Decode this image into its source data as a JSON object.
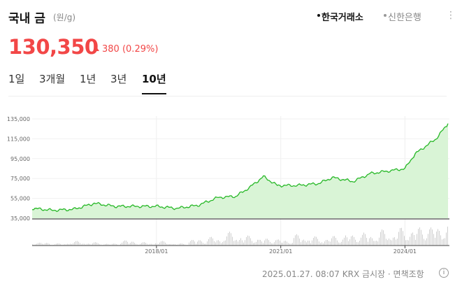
{
  "header": {
    "title": "국내 금",
    "unit": "(원/g)",
    "sources": [
      {
        "label": "한국거래소",
        "selected": true
      },
      {
        "label": "신한은행",
        "selected": false
      }
    ],
    "more_icon": "kebab-icon"
  },
  "quote": {
    "price": "130,350",
    "change": "380",
    "change_pct": "(0.29%)",
    "direction": "up",
    "up_color": "#f24747"
  },
  "tabs": [
    {
      "label": "1일",
      "active": false
    },
    {
      "label": "3개월",
      "active": false
    },
    {
      "label": "1년",
      "active": false
    },
    {
      "label": "3년",
      "active": false
    },
    {
      "label": "10년",
      "active": true
    }
  ],
  "chart_data": {
    "type": "area",
    "series": [
      {
        "values": [
          [
            "2015-01",
            45000
          ],
          [
            "2015-07",
            43000
          ],
          [
            "2016-01",
            44000
          ],
          [
            "2016-07",
            50000
          ],
          [
            "2017-01",
            47000
          ],
          [
            "2017-07",
            47000
          ],
          [
            "2018-01",
            47000
          ],
          [
            "2018-07",
            45000
          ],
          [
            "2019-01",
            48000
          ],
          [
            "2019-07",
            56000
          ],
          [
            "2019-12",
            57000
          ],
          [
            "2020-04",
            66000
          ],
          [
            "2020-08",
            77000
          ],
          [
            "2020-12",
            68000
          ],
          [
            "2021-06",
            68000
          ],
          [
            "2021-12",
            70000
          ],
          [
            "2022-04",
            76000
          ],
          [
            "2022-10",
            72000
          ],
          [
            "2023-03",
            80000
          ],
          [
            "2023-09",
            83000
          ],
          [
            "2024-01",
            85000
          ],
          [
            "2024-04",
            100000
          ],
          [
            "2024-10",
            115000
          ],
          [
            "2025-01",
            130350
          ]
        ]
      }
    ],
    "volume": [
      3,
      2,
      4,
      3,
      2,
      5,
      3,
      4,
      2,
      6,
      8,
      12,
      9,
      7,
      6,
      10,
      8,
      9,
      11,
      12,
      14,
      16,
      18,
      20
    ],
    "y_ticks": [
      "135,000",
      "115,000",
      "95,000",
      "75,000",
      "55,000",
      "35,000"
    ],
    "x_ticks": [
      "2018/01",
      "2021/01",
      "2024/01"
    ],
    "ylim": [
      35000,
      135000
    ],
    "grid": true,
    "line_color": "#27b827",
    "fill_color": "#d9f4d6"
  },
  "footer": {
    "text": "2025.01.27. 08:07 KRX 금시장 · 면책조항",
    "info_icon": "i"
  }
}
